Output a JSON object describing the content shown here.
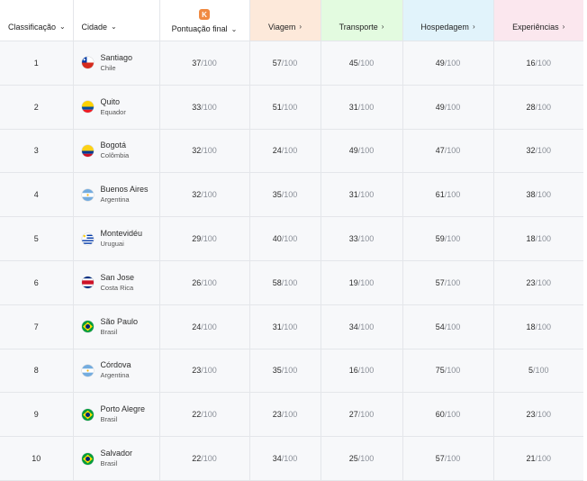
{
  "headers": {
    "rank": "Classificação",
    "city": "Cidade",
    "score": "Pontuação final",
    "score_badge": "K",
    "viagem": "Viagem",
    "transporte": "Transporte",
    "hospedagem": "Hospedagem",
    "experiencias": "Experiências"
  },
  "colors": {
    "viagem": "#fde9da",
    "transporte": "#e3fbe0",
    "hospedagem": "#e1f3fb",
    "experiencias": "#fbe7ee",
    "badge": "#f08a42"
  },
  "denominator": "/100",
  "rows": [
    {
      "rank": "1",
      "city": "Santiago",
      "country": "Chile",
      "flag": "chile-flag-icon",
      "score": "37",
      "viagem": "57",
      "transporte": "45",
      "hospedagem": "49",
      "experiencias": "16"
    },
    {
      "rank": "2",
      "city": "Quito",
      "country": "Equador",
      "flag": "ecuador-flag-icon",
      "score": "33",
      "viagem": "51",
      "transporte": "31",
      "hospedagem": "49",
      "experiencias": "28"
    },
    {
      "rank": "3",
      "city": "Bogotá",
      "country": "Colômbia",
      "flag": "colombia-flag-icon",
      "score": "32",
      "viagem": "24",
      "transporte": "49",
      "hospedagem": "47",
      "experiencias": "32"
    },
    {
      "rank": "4",
      "city": "Buenos Aires",
      "country": "Argentina",
      "flag": "argentina-flag-icon",
      "score": "32",
      "viagem": "35",
      "transporte": "31",
      "hospedagem": "61",
      "experiencias": "38"
    },
    {
      "rank": "5",
      "city": "Montevidéu",
      "country": "Uruguai",
      "flag": "uruguay-flag-icon",
      "score": "29",
      "viagem": "40",
      "transporte": "33",
      "hospedagem": "59",
      "experiencias": "18"
    },
    {
      "rank": "6",
      "city": "San Jose",
      "country": "Costa Rica",
      "flag": "costa-rica-flag-icon",
      "score": "26",
      "viagem": "58",
      "transporte": "19",
      "hospedagem": "57",
      "experiencias": "23"
    },
    {
      "rank": "7",
      "city": "São Paulo",
      "country": "Brasil",
      "flag": "brazil-flag-icon",
      "score": "24",
      "viagem": "31",
      "transporte": "34",
      "hospedagem": "54",
      "experiencias": "18"
    },
    {
      "rank": "8",
      "city": "Córdova",
      "country": "Argentina",
      "flag": "argentina-flag-icon",
      "score": "23",
      "viagem": "35",
      "transporte": "16",
      "hospedagem": "75",
      "experiencias": "5"
    },
    {
      "rank": "9",
      "city": "Porto Alegre",
      "country": "Brasil",
      "flag": "brazil-flag-icon",
      "score": "22",
      "viagem": "23",
      "transporte": "27",
      "hospedagem": "60",
      "experiencias": "23"
    },
    {
      "rank": "10",
      "city": "Salvador",
      "country": "Brasil",
      "flag": "brazil-flag-icon",
      "score": "22",
      "viagem": "34",
      "transporte": "25",
      "hospedagem": "57",
      "experiencias": "21"
    }
  ]
}
